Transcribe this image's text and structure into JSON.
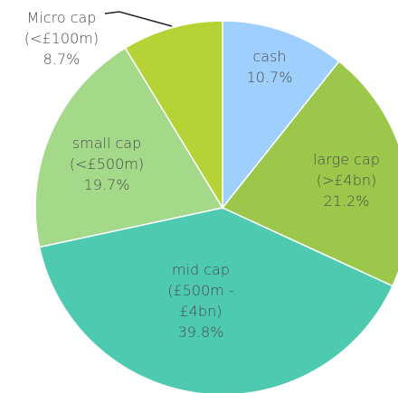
{
  "chart_data": {
    "type": "pie",
    "categories": [
      "cash",
      "large cap\n(>£4bn)",
      "mid cap\n(£500m -\n£4bn)",
      "small cap\n(<£500m)",
      "Micro cap\n(<£100m)"
    ],
    "values": [
      10.7,
      21.2,
      39.8,
      19.7,
      8.7
    ],
    "value_labels": [
      "10.7%",
      "21.2%",
      "39.8%",
      "19.7%",
      "8.7%"
    ],
    "colors": [
      "#9fcffc",
      "#9bc84a",
      "#4ecab1",
      "#a5d98a",
      "#b6d335"
    ]
  }
}
